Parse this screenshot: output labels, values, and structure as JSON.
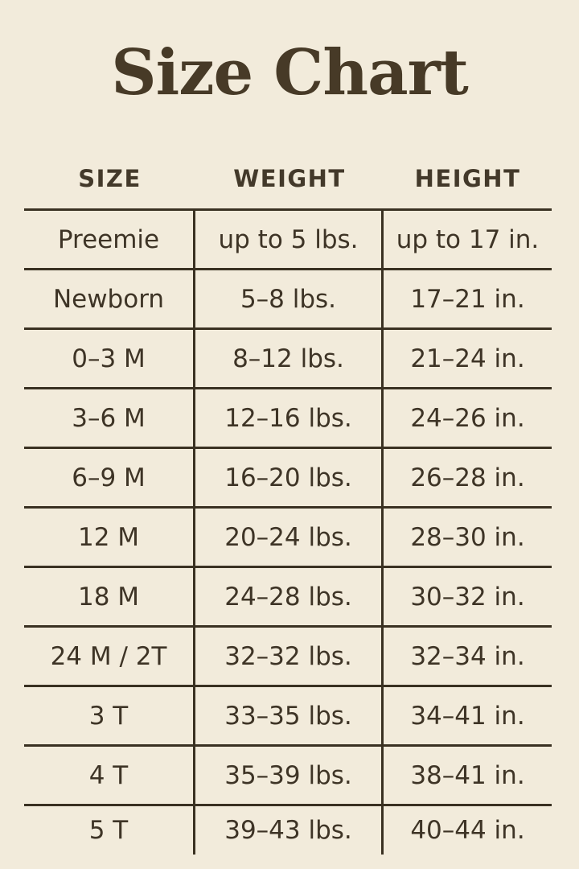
{
  "page": {
    "title": "Size Chart",
    "background_color": "#f2ebdb",
    "text_color": "#3e3426",
    "line_color": "#3a3122",
    "title_color": "#473a27"
  },
  "table": {
    "headers": [
      "SIZE",
      "WEIGHT",
      "HEIGHT"
    ],
    "rows": [
      [
        "Preemie",
        "up to 5 lbs.",
        "up to 17 in."
      ],
      [
        "Newborn",
        "5–8 lbs.",
        "17–21 in."
      ],
      [
        "0–3 M",
        "8–12 lbs.",
        "21–24 in."
      ],
      [
        "3–6 M",
        "12–16 lbs.",
        "24–26 in."
      ],
      [
        "6–9 M",
        "16–20 lbs.",
        "26–28 in."
      ],
      [
        "12 M",
        "20–24 lbs.",
        "28–30 in."
      ],
      [
        "18 M",
        "24–28 lbs.",
        "30–32 in."
      ],
      [
        "24 M / 2T",
        "32–32 lbs.",
        "32–34 in."
      ],
      [
        "3 T",
        "33–35 lbs.",
        "34–41 in."
      ],
      [
        "4 T",
        "35–39 lbs.",
        "38–41 in."
      ],
      [
        "5 T",
        "39–43 lbs.",
        "40–44 in."
      ]
    ]
  },
  "chart_data": {
    "type": "table",
    "title": "Size Chart",
    "columns": [
      "SIZE",
      "WEIGHT",
      "HEIGHT"
    ],
    "rows": [
      {
        "size": "Preemie",
        "weight": "up to 5 lbs.",
        "height": "up to 17 in."
      },
      {
        "size": "Newborn",
        "weight": "5–8 lbs.",
        "height": "17–21 in."
      },
      {
        "size": "0–3 M",
        "weight": "8–12 lbs.",
        "height": "21–24 in."
      },
      {
        "size": "3–6 M",
        "weight": "12–16 lbs.",
        "height": "24–26 in."
      },
      {
        "size": "6–9 M",
        "weight": "16–20 lbs.",
        "height": "26–28 in."
      },
      {
        "size": "12 M",
        "weight": "20–24 lbs.",
        "height": "28–30 in."
      },
      {
        "size": "18 M",
        "weight": "24–28 lbs.",
        "height": "30–32 in."
      },
      {
        "size": "24 M / 2T",
        "weight": "32–32 lbs.",
        "height": "32–34 in."
      },
      {
        "size": "3 T",
        "weight": "33–35 lbs.",
        "height": "34–41 in."
      },
      {
        "size": "4 T",
        "weight": "35–39 lbs.",
        "height": "38–41 in."
      },
      {
        "size": "5 T",
        "weight": "39–43 lbs.",
        "height": "40–44 in."
      }
    ],
    "layout": {
      "grid": "horizontal rules between all rows, vertical rules between columns; no outer box; no bottom rule under last row",
      "column_dividers_extend_below_last_row": true
    }
  }
}
